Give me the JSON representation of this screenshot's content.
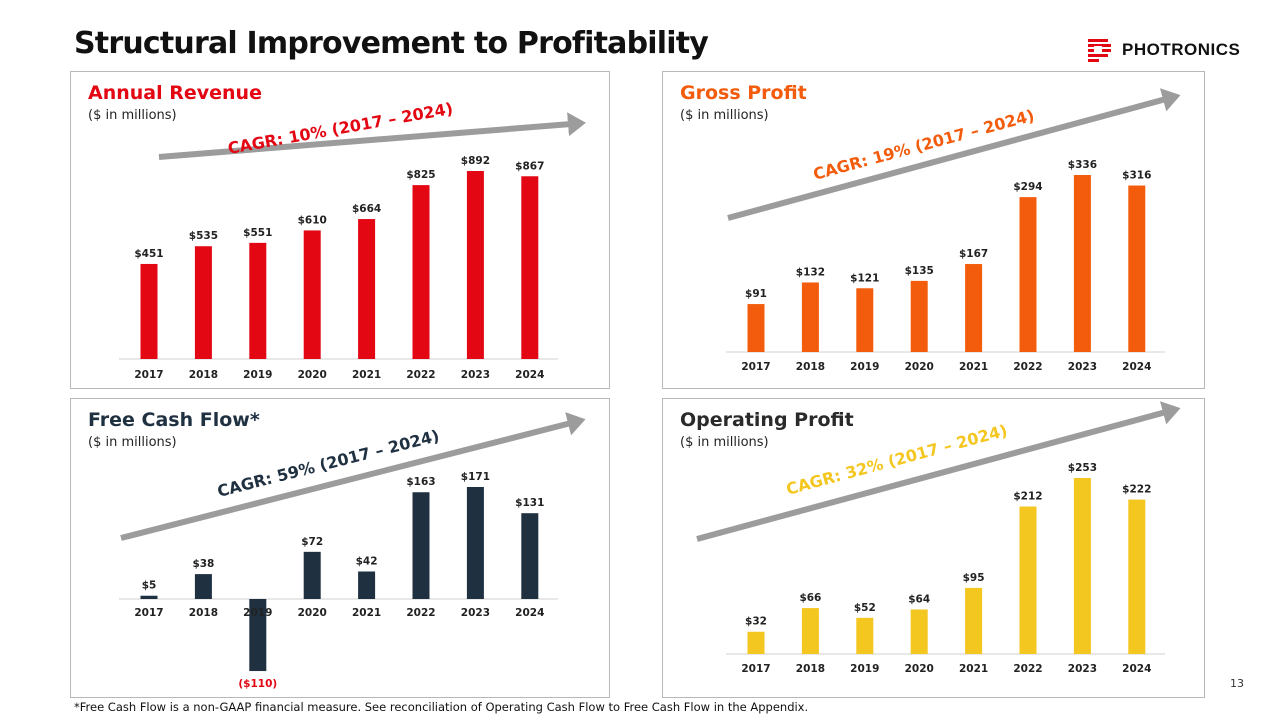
{
  "slide": {
    "title": "Structural Improvement to Profitability",
    "logo_text": "PHOTRONICS",
    "footnote": "*Free Cash Flow is a non-GAAP financial measure. See reconciliation of Operating Cash Flow to Free Cash Flow in the Appendix.",
    "page_number": "13"
  },
  "colors": {
    "revenue": "#e30613",
    "gross_profit": "#f25c0c",
    "free_cash_flow": "#1f3041",
    "operating_profit": "#f4c620",
    "trend_arrow": "#9c9c9c",
    "axis_line": "#d0d0d0"
  },
  "chart_data": [
    {
      "id": "annual-revenue",
      "type": "bar",
      "title": "Annual Revenue",
      "subtitle": "($ in millions)",
      "annotation": "CAGR: 10% (2017 – 2024)",
      "title_color": "#e30613",
      "annotation_color": "#e30613",
      "color": "#e30613",
      "categories": [
        "2017",
        "2018",
        "2019",
        "2020",
        "2021",
        "2022",
        "2023",
        "2024"
      ],
      "values": [
        451,
        535,
        551,
        610,
        664,
        825,
        892,
        867
      ],
      "labels": [
        "$451",
        "$535",
        "$551",
        "$610",
        "$664",
        "$825",
        "$892",
        "$867"
      ],
      "ylim": [
        0,
        892
      ]
    },
    {
      "id": "gross-profit",
      "type": "bar",
      "title": "Gross Profit",
      "subtitle": "($ in millions)",
      "annotation": "CAGR: 19% (2017 – 2024)",
      "title_color": "#f25c0c",
      "annotation_color": "#f25c0c",
      "color": "#f25c0c",
      "categories": [
        "2017",
        "2018",
        "2019",
        "2020",
        "2021",
        "2022",
        "2023",
        "2024"
      ],
      "values": [
        91,
        132,
        121,
        135,
        167,
        294,
        336,
        316
      ],
      "labels": [
        "$91",
        "$132",
        "$121",
        "$135",
        "$167",
        "$294",
        "$336",
        "$316"
      ],
      "ylim": [
        0,
        336
      ]
    },
    {
      "id": "free-cash-flow",
      "type": "bar",
      "title": "Free Cash Flow*",
      "subtitle": "($ in millions)",
      "annotation": "CAGR: 59% (2017 – 2024)",
      "title_color": "#1f3041",
      "annotation_color": "#1f3041",
      "color": "#1f3041",
      "categories": [
        "2017",
        "2018",
        "2019",
        "2020",
        "2021",
        "2022",
        "2023",
        "2024"
      ],
      "values": [
        5,
        38,
        -110,
        72,
        42,
        163,
        171,
        131
      ],
      "labels": [
        "$5",
        "$38",
        "($110)",
        "$72",
        "$42",
        "$163",
        "$171",
        "$131"
      ],
      "negative_label_color": "#e30613",
      "ylim": [
        -110,
        171
      ]
    },
    {
      "id": "operating-profit",
      "type": "bar",
      "title": "Operating Profit",
      "subtitle": "($ in millions)",
      "annotation": "CAGR: 32% (2017 – 2024)",
      "title_color": "#2a2a2a",
      "annotation_color": "#f4c620",
      "color": "#f4c620",
      "categories": [
        "2017",
        "2018",
        "2019",
        "2020",
        "2021",
        "2022",
        "2023",
        "2024"
      ],
      "values": [
        32,
        66,
        52,
        64,
        95,
        212,
        253,
        222
      ],
      "labels": [
        "$32",
        "$66",
        "$52",
        "$64",
        "$95",
        "$212",
        "$253",
        "$222"
      ],
      "ylim": [
        0,
        253
      ]
    }
  ]
}
